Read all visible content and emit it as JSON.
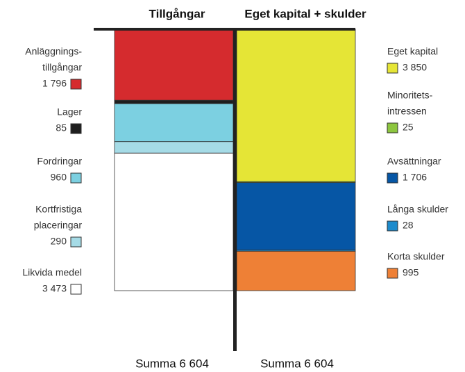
{
  "chart_data": {
    "type": "stacked-bar",
    "ylim": [
      0,
      6604
    ],
    "columns": [
      {
        "name": "Tillgångar",
        "total_label": "Summa 6 604",
        "items": [
          {
            "name": [
              "Anläggnings-",
              "tillgångar"
            ],
            "value": 1796,
            "value_label": "1 796",
            "color": "#d52b2e"
          },
          {
            "name": [
              "Lager"
            ],
            "value": 85,
            "value_label": "85",
            "color": "#1e1e1e"
          },
          {
            "name": [
              "Fordringar"
            ],
            "value": 960,
            "value_label": "960",
            "color": "#7cd0e1"
          },
          {
            "name": [
              "Kortfristiga",
              "placeringar"
            ],
            "value": 290,
            "value_label": "290",
            "color": "#a5dbe6"
          },
          {
            "name": [
              "Likvida medel"
            ],
            "value": 3473,
            "value_label": "3 473",
            "color": "#ffffff"
          }
        ]
      },
      {
        "name": "Eget kapital + skulder",
        "total_label": "Summa 6 604",
        "items": [
          {
            "name": [
              "Eget kapital"
            ],
            "value": 3850,
            "value_label": "3 850",
            "color": "#e5e536"
          },
          {
            "name": [
              "Minoritets-",
              "intressen"
            ],
            "value": 25,
            "value_label": "25",
            "color": "#8dc63f"
          },
          {
            "name": [
              "Avsättningar"
            ],
            "value": 1706,
            "value_label": "1 706",
            "color": "#0656a5"
          },
          {
            "name": [
              "Långa skulder"
            ],
            "value": 28,
            "value_label": "28",
            "color": "#1d8bcc"
          },
          {
            "name": [
              "Korta skulder"
            ],
            "value": 995,
            "value_label": "995",
            "color": "#ee8036"
          }
        ]
      }
    ]
  }
}
